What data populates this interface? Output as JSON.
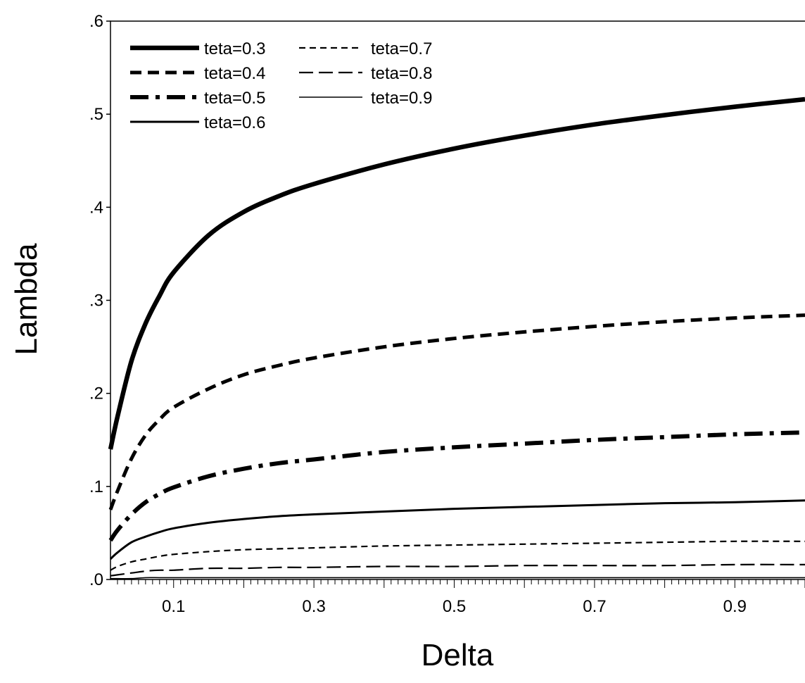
{
  "chart_data": {
    "type": "line",
    "title": "",
    "xlabel": "Delta",
    "ylabel": "Lambda",
    "xlim": [
      0.01,
      1.0
    ],
    "ylim": [
      0.0,
      0.6
    ],
    "x_ticks": [
      0.1,
      0.3,
      0.5,
      0.7,
      0.9
    ],
    "x_tick_labels": [
      "0.1",
      "0.3",
      "0.5",
      "0.7",
      "0.9"
    ],
    "y_ticks": [
      0.0,
      0.1,
      0.2,
      0.3,
      0.4,
      0.5,
      0.6
    ],
    "y_tick_labels": [
      ".0",
      ".1",
      ".2",
      ".3",
      ".4",
      ".5",
      ".6"
    ],
    "grid": false,
    "legend_position": "top-left",
    "x": [
      0.01,
      0.02,
      0.04,
      0.06,
      0.08,
      0.1,
      0.15,
      0.2,
      0.25,
      0.3,
      0.4,
      0.5,
      0.6,
      0.7,
      0.8,
      0.9,
      1.0
    ],
    "series": [
      {
        "name": "teta=0.3",
        "color": "#000000",
        "style": "solid-heavy",
        "values": [
          0.14,
          0.175,
          0.235,
          0.275,
          0.305,
          0.33,
          0.37,
          0.395,
          0.412,
          0.425,
          0.446,
          0.463,
          0.477,
          0.489,
          0.499,
          0.508,
          0.516
        ]
      },
      {
        "name": "teta=0.4",
        "color": "#000000",
        "style": "dash-heavy",
        "values": [
          0.075,
          0.095,
          0.13,
          0.155,
          0.172,
          0.185,
          0.205,
          0.22,
          0.23,
          0.238,
          0.25,
          0.259,
          0.266,
          0.272,
          0.277,
          0.281,
          0.284
        ]
      },
      {
        "name": "teta=0.5",
        "color": "#000000",
        "style": "dash-dot-heavy",
        "values": [
          0.042,
          0.053,
          0.07,
          0.083,
          0.092,
          0.099,
          0.111,
          0.119,
          0.125,
          0.129,
          0.137,
          0.142,
          0.146,
          0.15,
          0.153,
          0.156,
          0.158
        ]
      },
      {
        "name": "teta=0.6",
        "color": "#000000",
        "style": "solid-medium",
        "values": [
          0.022,
          0.029,
          0.04,
          0.046,
          0.051,
          0.055,
          0.061,
          0.065,
          0.068,
          0.07,
          0.073,
          0.076,
          0.078,
          0.08,
          0.082,
          0.083,
          0.085
        ]
      },
      {
        "name": "teta=0.7",
        "color": "#000000",
        "style": "dash-small",
        "values": [
          0.01,
          0.014,
          0.019,
          0.022,
          0.025,
          0.027,
          0.03,
          0.032,
          0.033,
          0.034,
          0.036,
          0.037,
          0.038,
          0.039,
          0.04,
          0.041,
          0.041
        ]
      },
      {
        "name": "teta=0.8",
        "color": "#000000",
        "style": "long-dash",
        "values": [
          0.004,
          0.005,
          0.007,
          0.009,
          0.01,
          0.01,
          0.012,
          0.012,
          0.013,
          0.013,
          0.014,
          0.014,
          0.015,
          0.015,
          0.015,
          0.016,
          0.016
        ]
      },
      {
        "name": "teta=0.9",
        "color": "#000000",
        "style": "solid-thin",
        "values": [
          0.001,
          0.001,
          0.001,
          0.002,
          0.002,
          0.002,
          0.002,
          0.002,
          0.002,
          0.002,
          0.002,
          0.002,
          0.002,
          0.002,
          0.002,
          0.002,
          0.002
        ]
      }
    ]
  }
}
